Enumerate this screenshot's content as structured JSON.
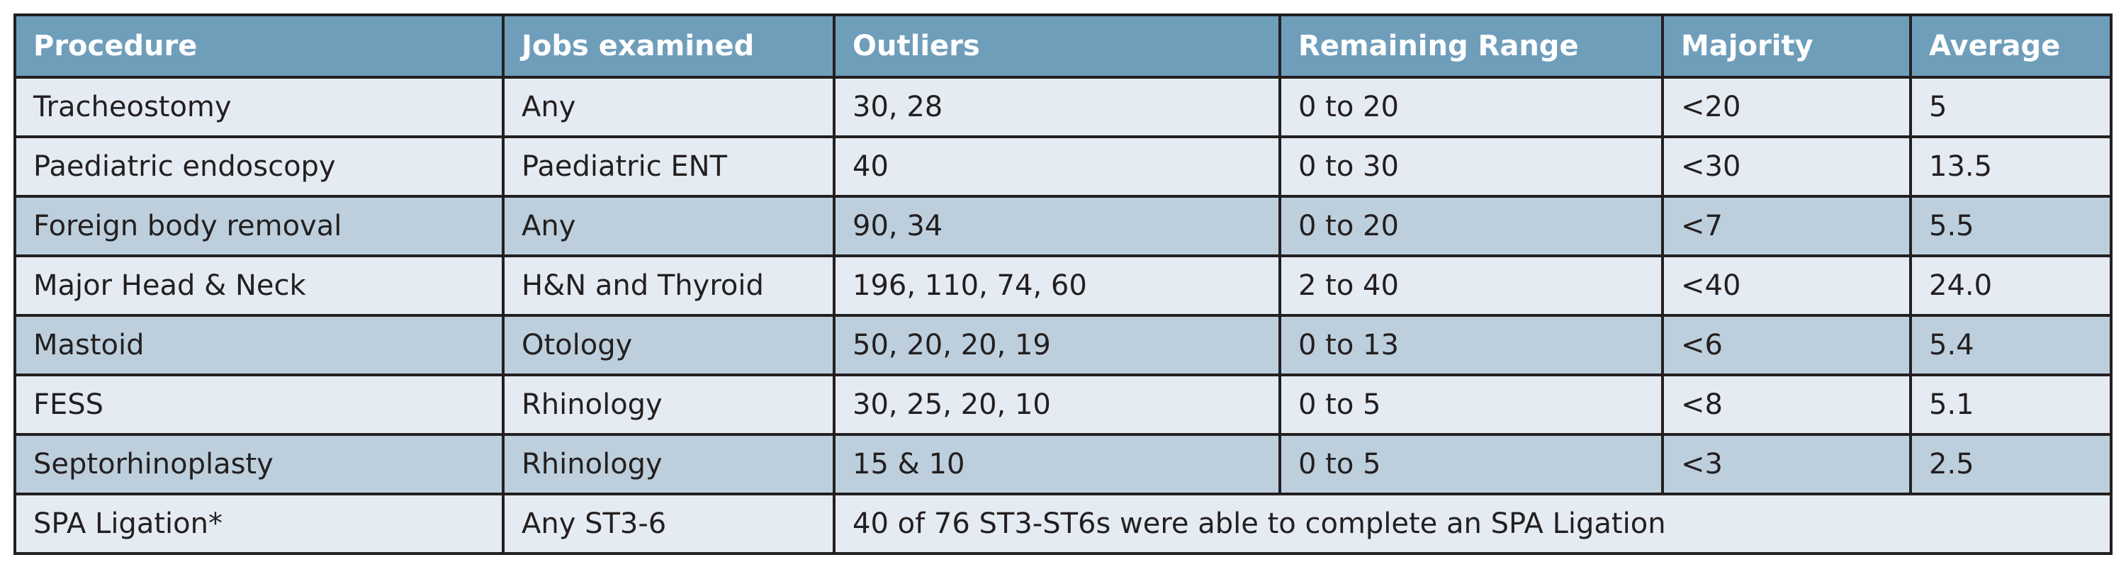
{
  "table": {
    "header": [
      "Procedure",
      "Jobs examined",
      "Outliers",
      "Remaining Range",
      "Majority",
      "Average"
    ],
    "rows": [
      [
        "Tracheostomy",
        "Any",
        "30, 28",
        "0 to 20",
        "<20",
        "5"
      ],
      [
        "Paediatric endoscopy",
        "Paediatric ENT",
        "40",
        "0 to 30",
        "<30",
        "13.5"
      ],
      [
        "Foreign body removal",
        "Any",
        "90, 34",
        "0 to 20",
        "<7",
        "5.5"
      ],
      [
        "Major Head & Neck",
        "H&N and Thyroid",
        "196, 110, 74, 60",
        "2 to 40",
        "<40",
        "24.0"
      ],
      [
        "Mastoid",
        "Otology",
        "50, 20, 20, 19",
        "0 to 13",
        "<6",
        "5.4"
      ],
      [
        "FESS",
        "Rhinology",
        "30, 25, 20, 10",
        "0 to 5",
        "<8",
        "5.1"
      ],
      [
        "Septorhinoplasty",
        "Rhinology",
        "15 & 10",
        "0 to 5",
        "<3",
        "2.5"
      ],
      [
        "SPA Ligation*",
        "Any ST3-6",
        "40 of 76 ST3-ST6s were able to complete an SPA Ligation"
      ]
    ]
  }
}
